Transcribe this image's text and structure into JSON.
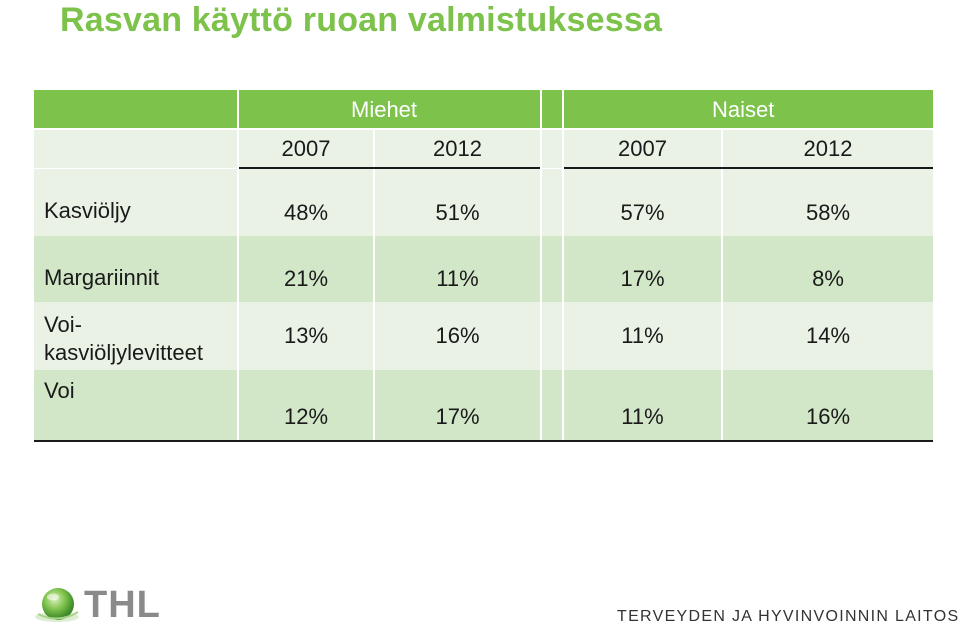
{
  "slide": {
    "title": "Rasvan käyttö ruoan valmistuksessa"
  },
  "table": {
    "groups": [
      "Miehet",
      "Naiset"
    ],
    "years": [
      "2007",
      "2012",
      "2007",
      "2012"
    ],
    "rows": [
      {
        "label": "Kasviöljy",
        "values": [
          "48%",
          "51%",
          "57%",
          "58%"
        ]
      },
      {
        "label": "Margariinnit",
        "values": [
          "21%",
          "11%",
          "17%",
          "8%"
        ]
      },
      {
        "label": "Voi-\nkasviöljylevitteet",
        "values": [
          "13%",
          "16%",
          "11%",
          "14%"
        ]
      },
      {
        "label": "Voi",
        "values": [
          "12%",
          "17%",
          "11%",
          "16%"
        ]
      }
    ]
  },
  "footer": {
    "logo_text": "THL",
    "institute": "TERVEYDEN JA HYVINVOINNIN LAITOS"
  },
  "colors": {
    "accent": "#7dc24b",
    "row_light": "#eaf2e5",
    "row_mid": "#d2e6c8"
  }
}
